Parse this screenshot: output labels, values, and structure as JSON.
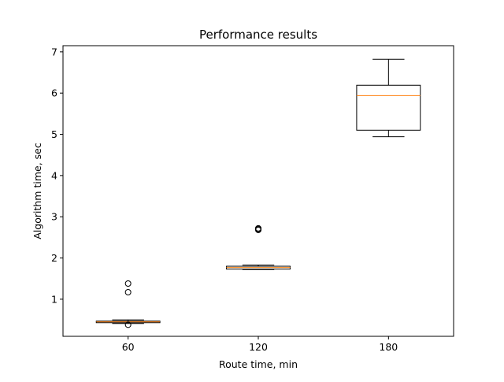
{
  "chart_data": {
    "type": "box",
    "title": "Performance results",
    "xlabel": "Route time, min",
    "ylabel": "Algorithm time, sec",
    "ylim": [
      0.1,
      7.15
    ],
    "yticks": [
      1,
      2,
      3,
      4,
      5,
      6,
      7
    ],
    "grid": false,
    "categories": [
      "60",
      "120",
      "180"
    ],
    "boxes": [
      {
        "category": "60",
        "whisker_low": 0.41,
        "q1": 0.43,
        "median": 0.45,
        "q3": 0.47,
        "whisker_high": 0.5,
        "outliers": [
          0.38,
          1.17,
          1.38
        ]
      },
      {
        "category": "120",
        "whisker_low": 1.72,
        "q1": 1.73,
        "median": 1.77,
        "q3": 1.8,
        "whisker_high": 1.83,
        "outliers": [
          2.68,
          2.7,
          2.72
        ]
      },
      {
        "category": "180",
        "whisker_low": 4.94,
        "q1": 5.1,
        "median": 5.94,
        "q3": 6.19,
        "whisker_high": 6.82,
        "outliers": []
      }
    ],
    "colors": {
      "box": "#000000",
      "median": "#ff7f0e",
      "outlier": "#000000"
    }
  }
}
